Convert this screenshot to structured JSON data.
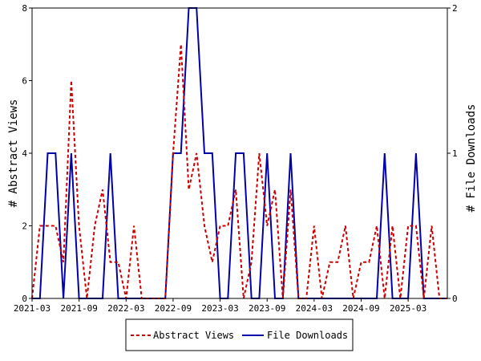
{
  "chart_data": {
    "type": "line",
    "x_tick_labels": [
      "2021-03",
      "2021-09",
      "2022-03",
      "2022-09",
      "2023-03",
      "2023-09",
      "2024-03",
      "2024-09",
      "2025-03"
    ],
    "x": [
      "2021-03",
      "2021-04",
      "2021-05",
      "2021-06",
      "2021-07",
      "2021-08",
      "2021-09",
      "2021-10",
      "2021-11",
      "2021-12",
      "2022-01",
      "2022-02",
      "2022-03",
      "2022-04",
      "2022-05",
      "2022-06",
      "2022-07",
      "2022-08",
      "2022-09",
      "2022-10",
      "2022-11",
      "2022-12",
      "2023-01",
      "2023-02",
      "2023-03",
      "2023-04",
      "2023-05",
      "2023-06",
      "2023-07",
      "2023-08",
      "2023-09",
      "2023-10",
      "2023-11",
      "2023-12",
      "2024-01",
      "2024-02",
      "2024-03",
      "2024-04",
      "2024-05",
      "2024-06",
      "2024-07",
      "2024-08",
      "2024-09",
      "2024-10",
      "2024-11",
      "2024-12",
      "2025-01",
      "2025-02",
      "2025-03",
      "2025-04",
      "2025-05",
      "2025-06",
      "2025-07",
      "2025-08"
    ],
    "ylabel_left": "# Abstract Views",
    "ylabel_right": "# File Downloads",
    "ylim_left": [
      0,
      8
    ],
    "ylim_right": [
      0,
      2
    ],
    "y_ticks_left": [
      "0",
      "2",
      "4",
      "6",
      "8"
    ],
    "y_ticks_right": [
      "0",
      "1",
      "2"
    ],
    "series": [
      {
        "name": "Abstract Views",
        "axis": "left",
        "color": "#cc0000",
        "style": "dashed",
        "values": [
          0,
          2,
          2,
          2,
          1,
          6,
          2,
          0,
          2,
          3,
          1,
          1,
          0,
          2,
          0,
          0,
          0,
          0,
          4,
          7,
          3,
          4,
          2,
          1,
          2,
          2,
          3,
          0,
          1,
          4,
          2,
          3,
          0,
          3,
          0,
          0,
          2,
          0,
          1,
          1,
          2,
          0,
          1,
          1,
          2,
          0,
          2,
          0,
          2,
          2,
          0,
          2,
          0,
          0
        ]
      },
      {
        "name": "File Downloads",
        "axis": "right",
        "color": "#0000aa",
        "style": "solid",
        "values": [
          0,
          0,
          1,
          1,
          0,
          1,
          0,
          0,
          0,
          0,
          1,
          0,
          0,
          0,
          0,
          0,
          0,
          0,
          1,
          1,
          2,
          2,
          1,
          1,
          0,
          0,
          1,
          1,
          0,
          0,
          1,
          0,
          0,
          1,
          0,
          0,
          0,
          0,
          0,
          0,
          0,
          0,
          0,
          0,
          0,
          1,
          0,
          0,
          0,
          1,
          0,
          0,
          0,
          0
        ]
      }
    ],
    "grid": false,
    "legend_position": "bottom"
  }
}
